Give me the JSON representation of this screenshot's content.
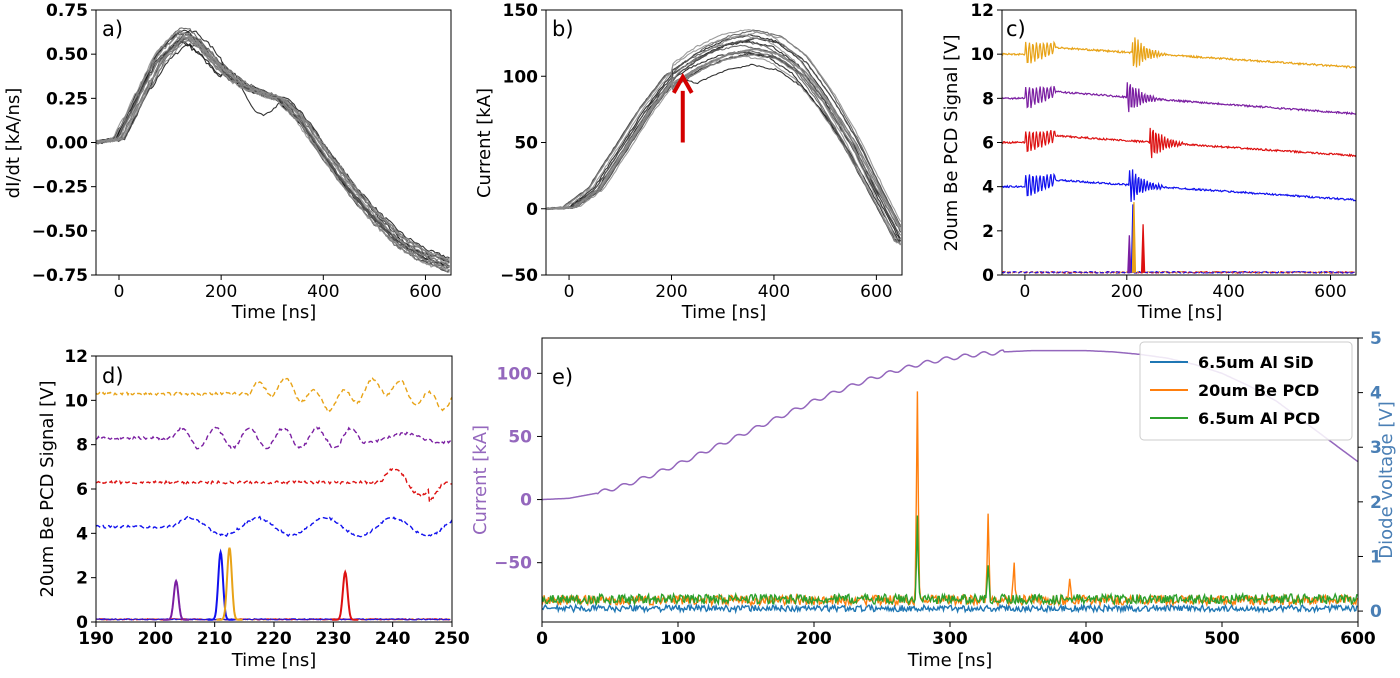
{
  "chart_data": [
    {
      "panel": "a)",
      "type": "line",
      "xlabel": "Time [ns]",
      "ylabel": "dI/dt [kA/ns]",
      "xlim": [
        -45,
        650
      ],
      "ylim": [
        -0.75,
        0.75
      ],
      "xticks": [
        "0",
        "200",
        "400",
        "600"
      ],
      "yticks": [
        "−0.75",
        "−0.50",
        "−0.25",
        "0.00",
        "0.25",
        "0.50",
        "0.75"
      ],
      "color": "#000000",
      "trace_count": 20,
      "series": [
        {
          "x": [
            -45,
            0,
            40,
            80,
            120,
            140,
            170,
            200,
            230,
            260,
            290,
            320,
            360,
            400,
            450,
            500,
            550,
            600,
            650
          ],
          "y": [
            0,
            0.02,
            0.25,
            0.48,
            0.6,
            0.6,
            0.52,
            0.42,
            0.35,
            0.3,
            0.27,
            0.24,
            0.12,
            -0.05,
            -0.25,
            -0.42,
            -0.56,
            -0.65,
            -0.7
          ]
        }
      ]
    },
    {
      "panel": "b)",
      "type": "line",
      "xlabel": "Time [ns]",
      "ylabel": "Current [kA]",
      "xlim": [
        -45,
        650
      ],
      "ylim": [
        -50,
        150
      ],
      "xticks": [
        "0",
        "200",
        "400",
        "600"
      ],
      "yticks": [
        "−50",
        "0",
        "50",
        "100",
        "150"
      ],
      "color": "#000000",
      "trace_count": 20,
      "annotation": {
        "type": "arrow",
        "color": "#d40000",
        "x": 222,
        "y_from": 50,
        "y_to": 98
      },
      "series": [
        {
          "x": [
            -45,
            0,
            50,
            100,
            150,
            200,
            250,
            300,
            350,
            400,
            450,
            500,
            550,
            600,
            650
          ],
          "y": [
            0,
            1,
            15,
            45,
            75,
            100,
            113,
            122,
            126,
            122,
            108,
            82,
            50,
            12,
            -25
          ]
        }
      ]
    },
    {
      "panel": "c)",
      "type": "line",
      "xlabel": "Time [ns]",
      "ylabel": "20um Be PCD Signal [V]",
      "xlim": [
        -45,
        650
      ],
      "ylim": [
        0,
        12
      ],
      "xticks": [
        "0",
        "200",
        "400",
        "600"
      ],
      "yticks": [
        "0",
        "2",
        "4",
        "6",
        "8",
        "10",
        "12"
      ],
      "series": [
        {
          "color": "#e8a317",
          "offset": 10.0,
          "end": 9.4,
          "spike": 215
        },
        {
          "color": "#7b1fa2",
          "offset": 8.0,
          "end": 7.3,
          "spike": 205
        },
        {
          "color": "#dd1111",
          "offset": 6.0,
          "end": 5.4,
          "spike": 250
        },
        {
          "color": "#1111ee",
          "offset": 4.0,
          "end": 3.4,
          "spike": 210
        }
      ],
      "baseline_peaks": [
        {
          "x": 205,
          "y": 1.8,
          "color": "#7b1fa2"
        },
        {
          "x": 212,
          "y": 3.2,
          "color": "#1111ee"
        },
        {
          "x": 214,
          "y": 3.3,
          "color": "#e8a317"
        },
        {
          "x": 232,
          "y": 2.3,
          "color": "#dd1111"
        }
      ]
    },
    {
      "panel": "d)",
      "type": "line",
      "xlabel": "Time [ns]",
      "ylabel": "20um Be PCD Signal [V]",
      "xlim": [
        190,
        250
      ],
      "ylim": [
        0,
        12
      ],
      "xticks": [
        "190",
        "200",
        "210",
        "220",
        "230",
        "240",
        "250"
      ],
      "yticks": [
        "0",
        "2",
        "4",
        "6",
        "8",
        "10",
        "12"
      ],
      "series": [
        {
          "color": "#e8a317",
          "offset": 10.3
        },
        {
          "color": "#7b1fa2",
          "offset": 8.3
        },
        {
          "color": "#dd1111",
          "offset": 6.3
        },
        {
          "color": "#1111ee",
          "offset": 4.3
        }
      ],
      "peaks": [
        {
          "x": 203.5,
          "y": 1.85,
          "color": "#7b1fa2"
        },
        {
          "x": 211.0,
          "y": 3.15,
          "color": "#1111ee"
        },
        {
          "x": 212.5,
          "y": 3.35,
          "color": "#e8a317"
        },
        {
          "x": 232.0,
          "y": 2.25,
          "color": "#dd1111"
        }
      ]
    },
    {
      "panel": "e)",
      "type": "line",
      "xlabel": "Time [ns]",
      "ylabel": "Current [kA]",
      "y2label": "Diode voltage [V]",
      "xlim": [
        0,
        600
      ],
      "ylim": [
        -97,
        128
      ],
      "y2lim": [
        -0.2,
        5.0
      ],
      "xticks": [
        "0",
        "100",
        "200",
        "300",
        "400",
        "500",
        "600"
      ],
      "yticks": [
        "−50",
        "0",
        "50",
        "100"
      ],
      "y2ticks": [
        "0",
        "1",
        "2",
        "3",
        "4",
        "5"
      ],
      "current": {
        "color": "#9467bd",
        "x": [
          0,
          20,
          40,
          60,
          80,
          100,
          120,
          140,
          160,
          180,
          200,
          220,
          240,
          260,
          280,
          300,
          320,
          340,
          360,
          380,
          400,
          420,
          440,
          460,
          480,
          500,
          520,
          540,
          560,
          580,
          600
        ],
        "y": [
          0,
          1,
          5,
          11,
          19,
          28,
          38,
          48,
          58,
          68,
          78,
          87,
          95,
          102,
          108,
          112,
          115,
          117,
          118,
          118,
          118,
          117,
          115,
          112,
          107,
          100,
          90,
          78,
          62,
          46,
          30
        ]
      },
      "series": [
        {
          "name": "6.5um Al SiD",
          "color": "#1f77b4",
          "base": 0.05,
          "peaks": []
        },
        {
          "name": "20um Be PCD",
          "color": "#ff7f0e",
          "base": 0.2,
          "peaks": [
            [
              276,
              4.1
            ],
            [
              328,
              1.7
            ],
            [
              347,
              0.9
            ],
            [
              388,
              0.6
            ]
          ]
        },
        {
          "name": "6.5um Al PCD",
          "color": "#2ca02c",
          "base": 0.22,
          "peaks": [
            [
              276,
              1.7
            ],
            [
              328,
              0.9
            ]
          ]
        }
      ]
    }
  ]
}
